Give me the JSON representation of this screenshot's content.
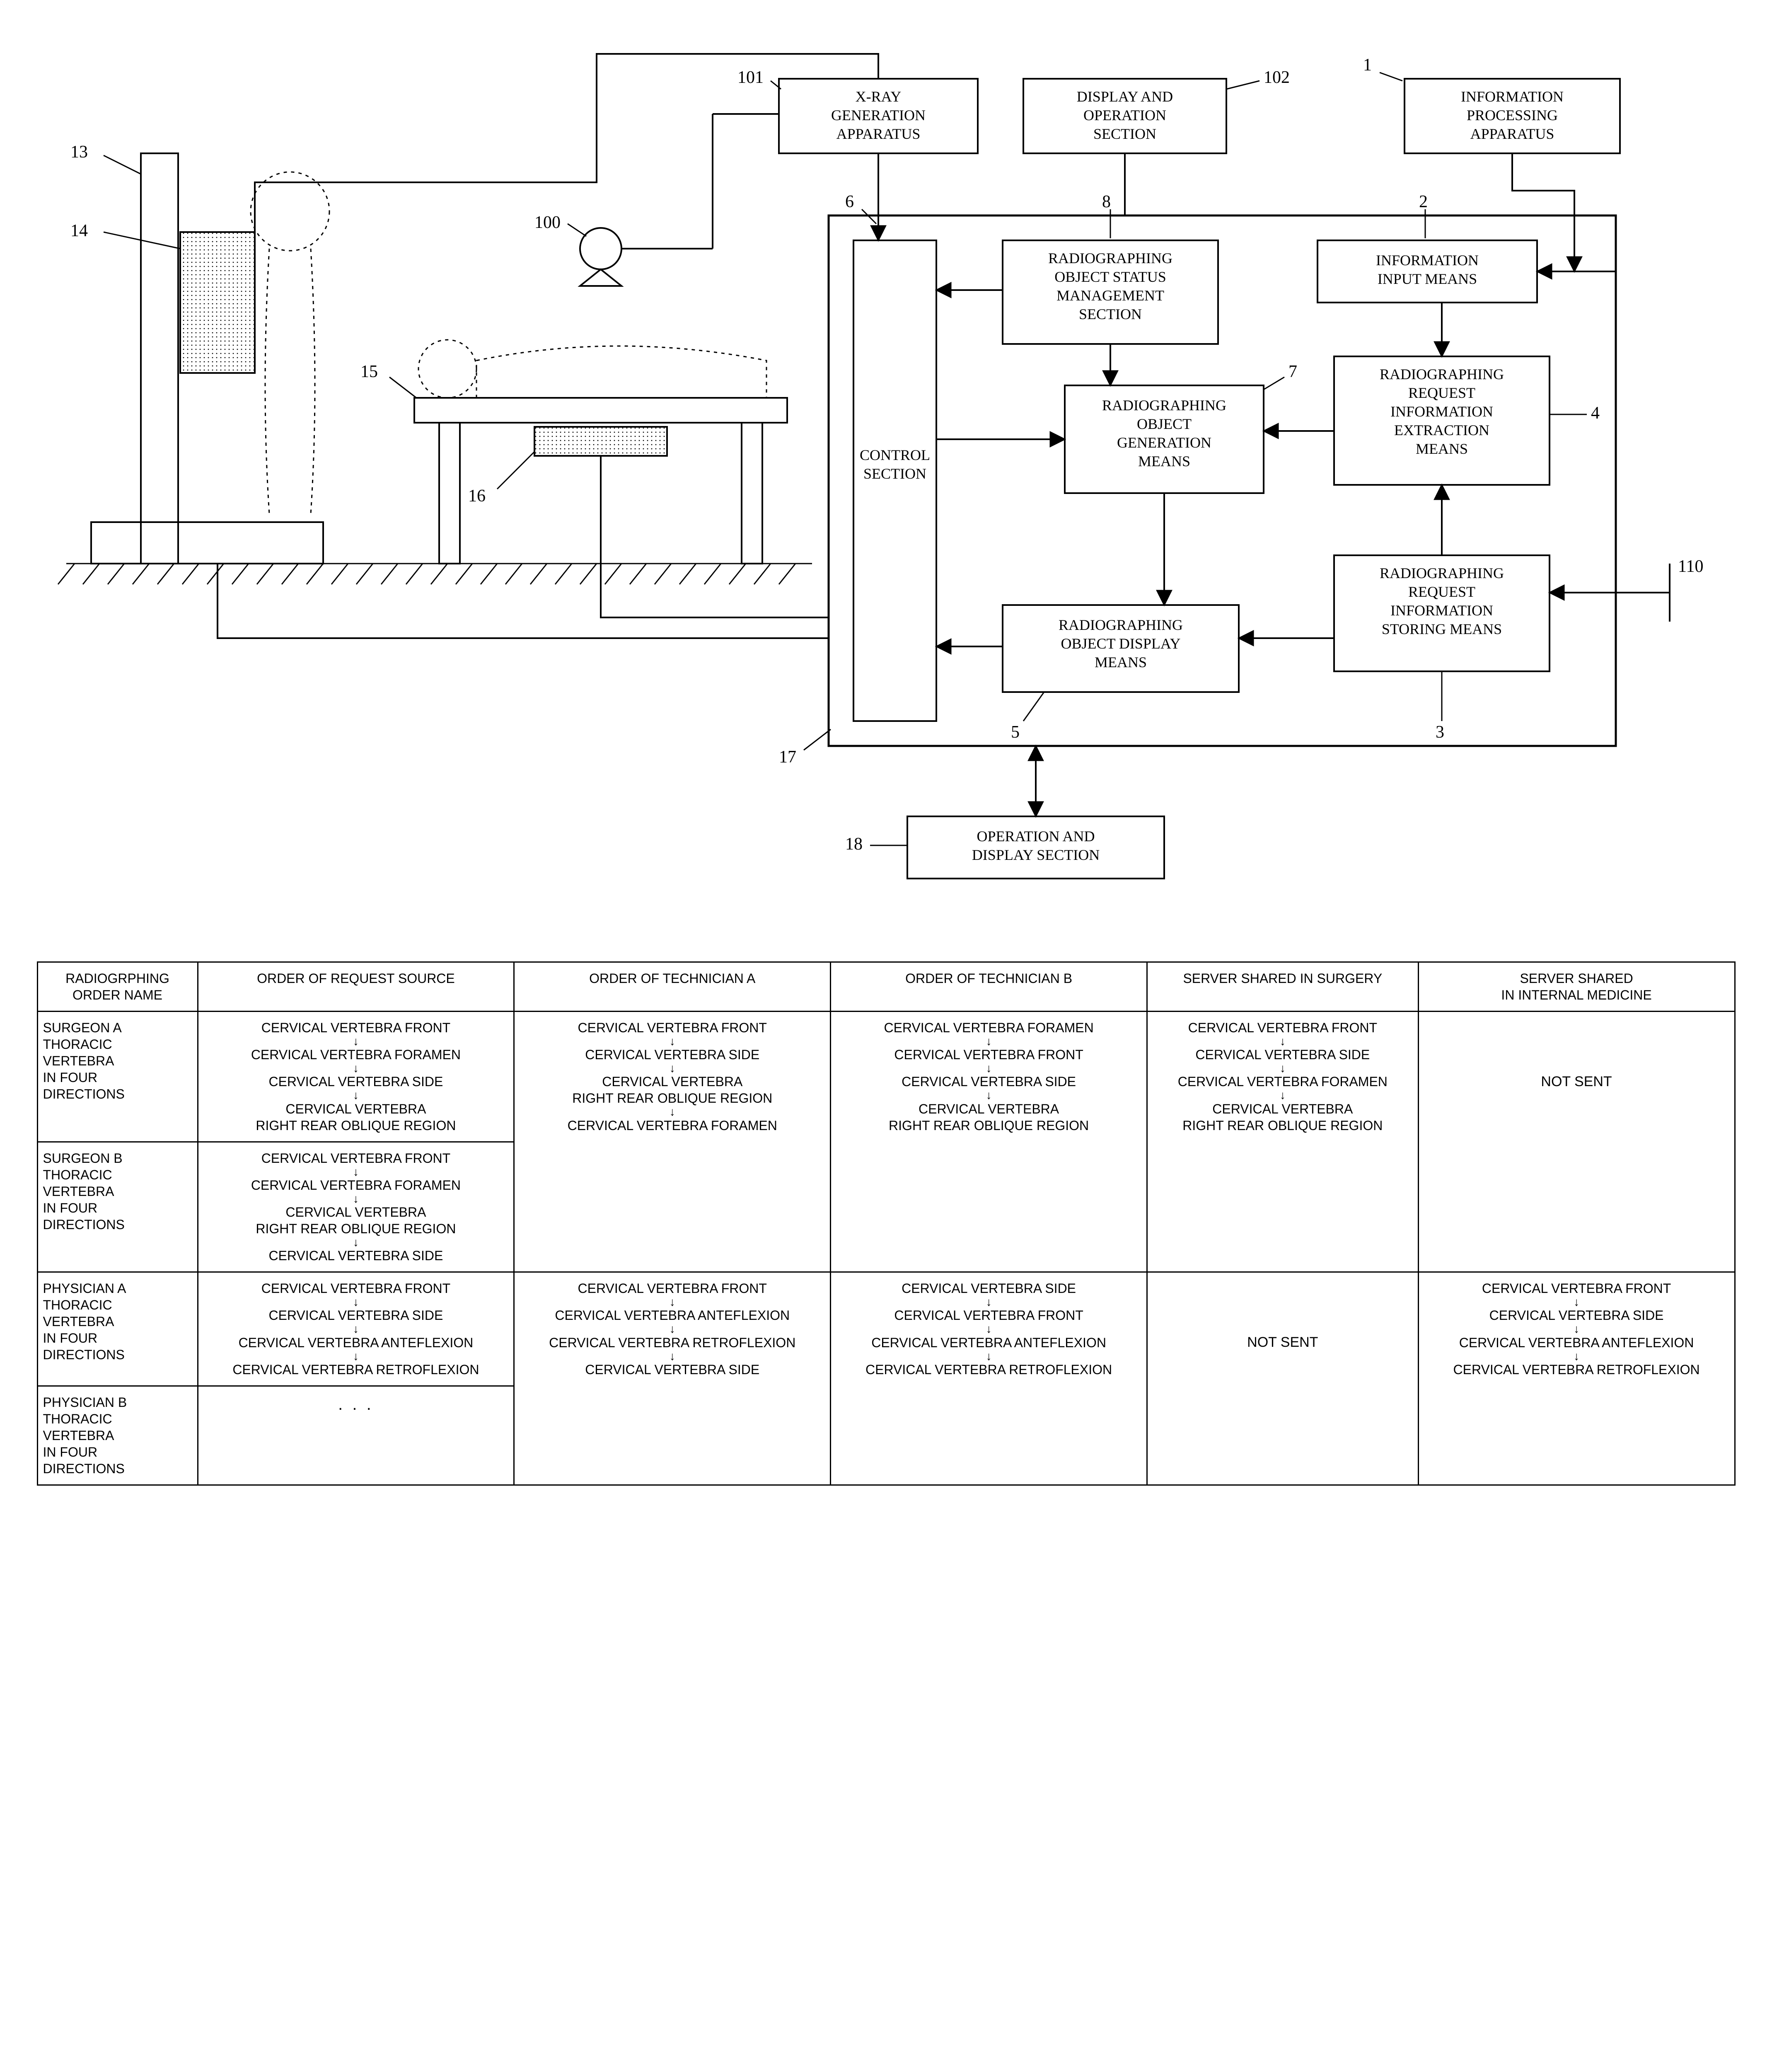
{
  "diagram": {
    "labels": {
      "n13": "13",
      "n14": "14",
      "n100": "100",
      "n15": "15",
      "n16": "16",
      "n101": "101",
      "n102": "102",
      "n1": "1",
      "n6": "6",
      "n8": "8",
      "n2": "2",
      "n7": "7",
      "n4": "4",
      "n5": "5",
      "n3": "3",
      "n17": "17",
      "n18": "18",
      "n110": "110"
    },
    "boxes": {
      "xray": [
        "X-RAY",
        "GENERATION",
        "APPARATUS"
      ],
      "display_op": [
        "DISPLAY AND",
        "OPERATION",
        "SECTION"
      ],
      "info_proc": [
        "INFORMATION",
        "PROCESSING",
        "APPARATUS"
      ],
      "control": [
        "CONTROL",
        "SECTION"
      ],
      "status_mgmt": [
        "RADIOGRAPHING",
        "OBJECT STATUS",
        "MANAGEMENT",
        "SECTION"
      ],
      "info_input": [
        "INFORMATION",
        "INPUT MEANS"
      ],
      "obj_gen": [
        "RADIOGRAPHING",
        "OBJECT",
        "GENERATION",
        "MEANS"
      ],
      "req_extract": [
        "RADIOGRAPHING",
        "REQUEST",
        "INFORMATION",
        "EXTRACTION",
        "MEANS"
      ],
      "obj_display": [
        "RADIOGRAPHING",
        "OBJECT DISPLAY",
        "MEANS"
      ],
      "req_store": [
        "RADIOGRAPHING",
        "REQUEST",
        "INFORMATION",
        "STORING MEANS"
      ],
      "op_display": [
        "OPERATION AND",
        "DISPLAY SECTION"
      ]
    },
    "colors": {
      "stroke": "#000000",
      "fill_bg": "#ffffff",
      "hatch": "#808080",
      "panel_fill": "#b0b0b0"
    },
    "stroke_width": 3
  },
  "table": {
    "headers": [
      "RADIOGRPHING\nORDER NAME",
      "ORDER OF REQUEST SOURCE",
      "ORDER OF TECHNICIAN A",
      "ORDER OF TECHNICIAN B",
      "SERVER SHARED IN SURGERY",
      "SERVER SHARED\nIN INTERNAL MEDICINE"
    ],
    "not_sent": "NOT SENT",
    "ellipsis": ". . .",
    "rownames": {
      "surgA": "SURGEON A\nTHORACIC\nVERTEBRA\nIN FOUR\nDIRECTIONS",
      "surgB": "SURGEON B\nTHORACIC\nVERTEBRA\nIN FOUR\nDIRECTIONS",
      "physA": "PHYSICIAN A\nTHORACIC\nVERTEBRA\nIN FOUR\nDIRECTIONS",
      "physB": "PHYSICIAN B\nTHORACIC\nVERTEBRA\nIN FOUR\nDIRECTIONS"
    },
    "seqs": {
      "surgA_src": [
        "CERVICAL VERTEBRA FRONT",
        "CERVICAL VERTEBRA FORAMEN",
        "CERVICAL VERTEBRA SIDE",
        "CERVICAL VERTEBRA\nRIGHT REAR OBLIQUE REGION"
      ],
      "surgB_src": [
        "CERVICAL VERTEBRA FRONT",
        "CERVICAL VERTEBRA FORAMEN",
        "CERVICAL VERTEBRA\nRIGHT REAR OBLIQUE REGION",
        "CERVICAL VERTEBRA SIDE"
      ],
      "surg_techA": [
        "CERVICAL VERTEBRA FRONT",
        "CERVICAL VERTEBRA SIDE",
        "CERVICAL VERTEBRA\nRIGHT REAR OBLIQUE REGION",
        "CERVICAL VERTEBRA FORAMEN"
      ],
      "surg_techB": [
        "CERVICAL VERTEBRA FORAMEN",
        "CERVICAL VERTEBRA FRONT",
        "CERVICAL VERTEBRA SIDE",
        "CERVICAL VERTEBRA\nRIGHT REAR OBLIQUE REGION"
      ],
      "surg_server_surg": [
        "CERVICAL VERTEBRA FRONT",
        "CERVICAL VERTEBRA SIDE",
        "CERVICAL VERTEBRA FORAMEN",
        "CERVICAL VERTEBRA\nRIGHT REAR OBLIQUE REGION"
      ],
      "physA_src": [
        "CERVICAL VERTEBRA FRONT",
        "CERVICAL VERTEBRA SIDE",
        "CERVICAL VERTEBRA ANTEFLEXION",
        "CERVICAL VERTEBRA RETROFLEXION"
      ],
      "phys_techA": [
        "CERVICAL VERTEBRA FRONT",
        "CERVICAL VERTEBRA ANTEFLEXION",
        "CERVICAL VERTEBRA RETROFLEXION",
        "CERVICAL VERTEBRA SIDE"
      ],
      "phys_techB": [
        "CERVICAL VERTEBRA SIDE",
        "CERVICAL VERTEBRA FRONT",
        "CERVICAL VERTEBRA ANTEFLEXION",
        "CERVICAL VERTEBRA RETROFLEXION"
      ],
      "phys_server_int": [
        "CERVICAL VERTEBRA FRONT",
        "CERVICAL VERTEBRA SIDE",
        "CERVICAL VERTEBRA ANTEFLEXION",
        "CERVICAL VERTEBRA RETROFLEXION"
      ]
    }
  }
}
